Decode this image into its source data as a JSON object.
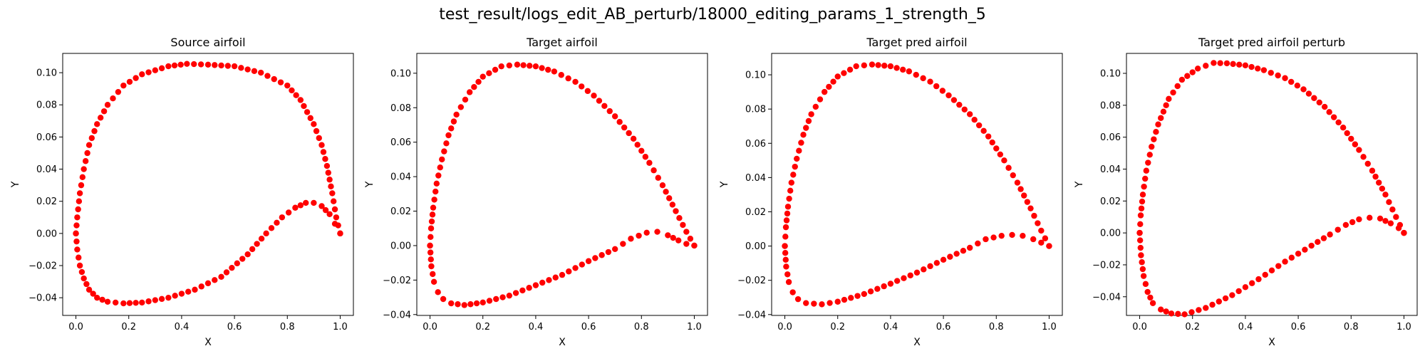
{
  "figure": {
    "suptitle": "test_result/logs_edit_AB_perturb/18000_editing_params_1_strength_5"
  },
  "colors": {
    "points": "#ff0000",
    "axes": "#000000",
    "background": "#ffffff"
  },
  "chart_data": [
    {
      "type": "scatter",
      "title": "Source airfoil",
      "xlabel": "X",
      "ylabel": "Y",
      "xlim": [
        -0.05,
        1.05
      ],
      "ylim": [
        -0.051,
        0.112
      ],
      "xticks": [
        0.0,
        0.2,
        0.4,
        0.6,
        0.8,
        1.0
      ],
      "xtick_labels": [
        "0.0",
        "0.2",
        "0.4",
        "0.6",
        "0.8",
        "1.0"
      ],
      "yticks": [
        -0.04,
        -0.02,
        0.0,
        0.02,
        0.04,
        0.06,
        0.08,
        0.1
      ],
      "ytick_labels": [
        "−0.04",
        "−0.02",
        "0.00",
        "0.02",
        "0.04",
        "0.06",
        "0.08",
        "0.10"
      ],
      "grid": false,
      "outline": {
        "upper": [
          [
            1.0,
            0.0
          ],
          [
            0.985,
            0.01
          ],
          [
            0.97,
            0.025
          ],
          [
            0.95,
            0.042
          ],
          [
            0.93,
            0.055
          ],
          [
            0.9,
            0.068
          ],
          [
            0.85,
            0.083
          ],
          [
            0.8,
            0.092
          ],
          [
            0.7,
            0.1
          ],
          [
            0.6,
            0.104
          ],
          [
            0.5,
            0.105
          ],
          [
            0.42,
            0.1055
          ],
          [
            0.35,
            0.104
          ],
          [
            0.25,
            0.099
          ],
          [
            0.18,
            0.092
          ],
          [
            0.12,
            0.08
          ],
          [
            0.08,
            0.068
          ],
          [
            0.05,
            0.055
          ],
          [
            0.03,
            0.04
          ],
          [
            0.015,
            0.025
          ],
          [
            0.005,
            0.01
          ],
          [
            0.0,
            0.0
          ]
        ],
        "lower": [
          [
            0.0,
            0.0
          ],
          [
            0.005,
            -0.01
          ],
          [
            0.015,
            -0.02
          ],
          [
            0.03,
            -0.028
          ],
          [
            0.05,
            -0.035
          ],
          [
            0.08,
            -0.04
          ],
          [
            0.12,
            -0.0425
          ],
          [
            0.18,
            -0.0435
          ],
          [
            0.25,
            -0.043
          ],
          [
            0.35,
            -0.04
          ],
          [
            0.45,
            -0.035
          ],
          [
            0.55,
            -0.027
          ],
          [
            0.65,
            -0.013
          ],
          [
            0.72,
            0.0
          ],
          [
            0.78,
            0.01
          ],
          [
            0.83,
            0.016
          ],
          [
            0.87,
            0.019
          ],
          [
            0.9,
            0.019
          ],
          [
            0.93,
            0.017
          ],
          [
            0.96,
            0.012
          ],
          [
            0.98,
            0.006
          ],
          [
            1.0,
            0.0
          ]
        ]
      }
    },
    {
      "type": "scatter",
      "title": "Target airfoil",
      "xlabel": "X",
      "ylabel": "Y",
      "xlim": [
        -0.05,
        1.05
      ],
      "ylim": [
        -0.0405,
        0.1115
      ],
      "xticks": [
        0.0,
        0.2,
        0.4,
        0.6,
        0.8,
        1.0
      ],
      "xtick_labels": [
        "0.0",
        "0.2",
        "0.4",
        "0.6",
        "0.8",
        "1.0"
      ],
      "yticks": [
        -0.04,
        -0.02,
        0.0,
        0.02,
        0.04,
        0.06,
        0.08,
        0.1
      ],
      "ytick_labels": [
        "−0.04",
        "−0.02",
        "0.00",
        "0.02",
        "0.04",
        "0.06",
        "0.08",
        "0.10"
      ],
      "grid": false,
      "outline": {
        "upper": [
          [
            1.0,
            0.0
          ],
          [
            0.97,
            0.008
          ],
          [
            0.93,
            0.02
          ],
          [
            0.88,
            0.035
          ],
          [
            0.83,
            0.048
          ],
          [
            0.77,
            0.062
          ],
          [
            0.7,
            0.075
          ],
          [
            0.62,
            0.087
          ],
          [
            0.55,
            0.095
          ],
          [
            0.47,
            0.101
          ],
          [
            0.4,
            0.104
          ],
          [
            0.33,
            0.105
          ],
          [
            0.27,
            0.104
          ],
          [
            0.2,
            0.098
          ],
          [
            0.15,
            0.089
          ],
          [
            0.1,
            0.076
          ],
          [
            0.07,
            0.064
          ],
          [
            0.045,
            0.05
          ],
          [
            0.025,
            0.036
          ],
          [
            0.012,
            0.022
          ],
          [
            0.004,
            0.01
          ],
          [
            0.0,
            0.0
          ]
        ],
        "lower": [
          [
            0.0,
            0.0
          ],
          [
            0.005,
            -0.012
          ],
          [
            0.015,
            -0.021
          ],
          [
            0.03,
            -0.027
          ],
          [
            0.05,
            -0.031
          ],
          [
            0.08,
            -0.0335
          ],
          [
            0.13,
            -0.0345
          ],
          [
            0.2,
            -0.033
          ],
          [
            0.3,
            -0.029
          ],
          [
            0.4,
            -0.023
          ],
          [
            0.5,
            -0.017
          ],
          [
            0.6,
            -0.009
          ],
          [
            0.7,
            -0.002
          ],
          [
            0.76,
            0.004
          ],
          [
            0.82,
            0.0075
          ],
          [
            0.86,
            0.008
          ],
          [
            0.9,
            0.006
          ],
          [
            0.94,
            0.003
          ],
          [
            0.97,
            0.001
          ],
          [
            1.0,
            0.0
          ]
        ]
      }
    },
    {
      "type": "scatter",
      "title": "Target pred airfoil",
      "xlabel": "X",
      "ylabel": "Y",
      "xlim": [
        -0.05,
        1.05
      ],
      "ylim": [
        -0.0405,
        0.1125
      ],
      "xticks": [
        0.0,
        0.2,
        0.4,
        0.6,
        0.8,
        1.0
      ],
      "xtick_labels": [
        "0.0",
        "0.2",
        "0.4",
        "0.6",
        "0.8",
        "1.0"
      ],
      "yticks": [
        -0.04,
        -0.02,
        0.0,
        0.02,
        0.04,
        0.06,
        0.08,
        0.1
      ],
      "ytick_labels": [
        "−0.04",
        "−0.02",
        "0.00",
        "0.02",
        "0.04",
        "0.06",
        "0.08",
        "0.10"
      ],
      "grid": false,
      "outline": {
        "upper": [
          [
            1.0,
            0.0
          ],
          [
            0.97,
            0.009
          ],
          [
            0.93,
            0.022
          ],
          [
            0.88,
            0.037
          ],
          [
            0.83,
            0.05
          ],
          [
            0.77,
            0.064
          ],
          [
            0.7,
            0.077
          ],
          [
            0.62,
            0.088
          ],
          [
            0.55,
            0.096
          ],
          [
            0.47,
            0.102
          ],
          [
            0.4,
            0.105
          ],
          [
            0.33,
            0.106
          ],
          [
            0.27,
            0.105
          ],
          [
            0.2,
            0.099
          ],
          [
            0.15,
            0.09
          ],
          [
            0.1,
            0.077
          ],
          [
            0.07,
            0.065
          ],
          [
            0.045,
            0.051
          ],
          [
            0.025,
            0.037
          ],
          [
            0.012,
            0.023
          ],
          [
            0.004,
            0.011
          ],
          [
            0.0,
            0.0
          ]
        ],
        "lower": [
          [
            0.0,
            0.0
          ],
          [
            0.005,
            -0.012
          ],
          [
            0.015,
            -0.021
          ],
          [
            0.03,
            -0.027
          ],
          [
            0.05,
            -0.031
          ],
          [
            0.08,
            -0.0333
          ],
          [
            0.14,
            -0.034
          ],
          [
            0.2,
            -0.0325
          ],
          [
            0.3,
            -0.028
          ],
          [
            0.4,
            -0.022
          ],
          [
            0.5,
            -0.0155
          ],
          [
            0.6,
            -0.008
          ],
          [
            0.7,
            -0.001
          ],
          [
            0.76,
            0.004
          ],
          [
            0.82,
            0.006
          ],
          [
            0.86,
            0.0065
          ],
          [
            0.9,
            0.006
          ],
          [
            0.94,
            0.004
          ],
          [
            0.97,
            0.002
          ],
          [
            1.0,
            0.0
          ]
        ]
      }
    },
    {
      "type": "scatter",
      "title": "Target pred airfoil perturb",
      "xlabel": "X",
      "ylabel": "Y",
      "xlim": [
        -0.05,
        1.05
      ],
      "ylim": [
        -0.0517,
        0.1125
      ],
      "xticks": [
        0.0,
        0.2,
        0.4,
        0.6,
        0.8,
        1.0
      ],
      "xtick_labels": [
        "0.0",
        "0.2",
        "0.4",
        "0.6",
        "0.8",
        "1.0"
      ],
      "yticks": [
        -0.04,
        -0.02,
        0.0,
        0.02,
        0.04,
        0.06,
        0.08,
        0.1
      ],
      "ytick_labels": [
        "−0.04",
        "−0.02",
        "0.00",
        "0.02",
        "0.04",
        "0.06",
        "0.08",
        "0.10"
      ],
      "grid": false,
      "outline": {
        "upper": [
          [
            1.0,
            0.0
          ],
          [
            0.97,
            0.01
          ],
          [
            0.93,
            0.024
          ],
          [
            0.88,
            0.039
          ],
          [
            0.83,
            0.052
          ],
          [
            0.77,
            0.066
          ],
          [
            0.7,
            0.079
          ],
          [
            0.62,
            0.09
          ],
          [
            0.55,
            0.097
          ],
          [
            0.47,
            0.102
          ],
          [
            0.4,
            0.105
          ],
          [
            0.33,
            0.1063
          ],
          [
            0.28,
            0.1065
          ],
          [
            0.22,
            0.103
          ],
          [
            0.16,
            0.096
          ],
          [
            0.11,
            0.084
          ],
          [
            0.07,
            0.068
          ],
          [
            0.045,
            0.054
          ],
          [
            0.025,
            0.039
          ],
          [
            0.012,
            0.024
          ],
          [
            0.004,
            0.011
          ],
          [
            0.0,
            0.0
          ]
        ],
        "lower": [
          [
            0.0,
            0.0
          ],
          [
            0.005,
            -0.014
          ],
          [
            0.015,
            -0.027
          ],
          [
            0.03,
            -0.037
          ],
          [
            0.05,
            -0.044
          ],
          [
            0.08,
            -0.048
          ],
          [
            0.12,
            -0.0505
          ],
          [
            0.17,
            -0.051
          ],
          [
            0.25,
            -0.047
          ],
          [
            0.35,
            -0.039
          ],
          [
            0.45,
            -0.029
          ],
          [
            0.55,
            -0.018
          ],
          [
            0.65,
            -0.008
          ],
          [
            0.72,
            -0.001
          ],
          [
            0.78,
            0.005
          ],
          [
            0.83,
            0.0085
          ],
          [
            0.87,
            0.0095
          ],
          [
            0.91,
            0.009
          ],
          [
            0.95,
            0.006
          ],
          [
            0.98,
            0.003
          ],
          [
            1.0,
            0.0
          ]
        ]
      }
    }
  ]
}
